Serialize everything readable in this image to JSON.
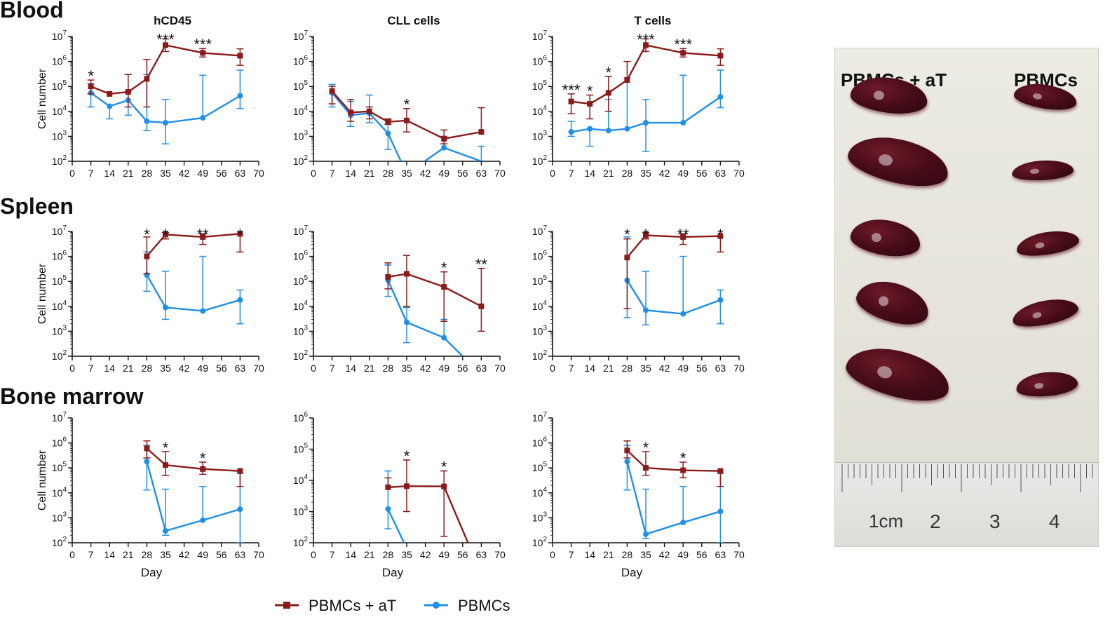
{
  "figure": {
    "row_titles": [
      "Blood",
      "Spleen",
      "Bone marrow"
    ],
    "col_titles": [
      "hCD45",
      "CLL cells",
      "T cells"
    ],
    "ylabel": "Cell number",
    "xlabel": "Day",
    "legend": [
      {
        "name": "PBMCs + aT",
        "color": "#8b1a1a",
        "marker": "square"
      },
      {
        "name": "PBMCs",
        "color": "#1f8fe8",
        "marker": "circle"
      }
    ]
  },
  "photo": {
    "labels": [
      "PBMCs + aT",
      "PBMCs"
    ],
    "ruler_labels": [
      "1cm",
      "2",
      "3",
      "4"
    ]
  },
  "chart_data": [
    {
      "type": "line",
      "row": "Blood",
      "title": "hCD45",
      "xlabel": "",
      "ylabel": "Cell number",
      "xlim": [
        0,
        70
      ],
      "ylim_log10": [
        2,
        7
      ],
      "xticks": [
        "0",
        "7",
        "14",
        "21",
        "28",
        "35",
        "42",
        "49",
        "56",
        "63",
        "70"
      ],
      "series": [
        {
          "name": "PBMCs + aT",
          "x": [
            7,
            14,
            21,
            28,
            35,
            49,
            63
          ],
          "y": [
            100000,
            50000,
            60000,
            200000,
            4500000,
            2200000,
            1700000
          ],
          "err_hi": [
            180000,
            null,
            300000,
            1200000,
            8000000,
            3300000,
            3200000
          ],
          "err_lo": [
            50000,
            null,
            15000,
            15000,
            2500000,
            1500000,
            700000
          ]
        },
        {
          "name": "PBMCs",
          "x": [
            7,
            14,
            21,
            28,
            35,
            49,
            63
          ],
          "y": [
            55000,
            16000,
            28000,
            4000,
            3500,
            5500,
            42000
          ],
          "err_hi": [
            130000,
            null,
            60000,
            300000,
            30000,
            280000,
            450000
          ],
          "err_lo": [
            15000,
            5000,
            7000,
            1700,
            500,
            null,
            13000
          ]
        }
      ],
      "annotations": [
        {
          "x": 7,
          "text": "*"
        },
        {
          "x": 35,
          "text": "***"
        },
        {
          "x": 49,
          "text": "***"
        }
      ]
    },
    {
      "type": "line",
      "row": "Blood",
      "title": "CLL cells",
      "xlabel": "",
      "ylabel": "",
      "xlim": [
        0,
        70
      ],
      "ylim_log10": [
        2,
        7
      ],
      "xticks": [
        "0",
        "7",
        "14",
        "21",
        "28",
        "35",
        "42",
        "49",
        "56",
        "63",
        "70"
      ],
      "series": [
        {
          "name": "PBMCs + aT",
          "x": [
            7,
            14,
            21,
            28,
            35,
            49,
            63
          ],
          "y": [
            65000,
            9000,
            10000,
            3800,
            4300,
            800,
            1500
          ],
          "err_hi": [
            100000,
            30000,
            15000,
            5000,
            13000,
            1800,
            14000
          ],
          "err_lo": [
            20000,
            4000,
            5000,
            3000,
            1500,
            500,
            null
          ]
        },
        {
          "name": "PBMCs",
          "x": [
            7,
            14,
            21,
            28,
            35,
            49,
            63
          ],
          "y": [
            55000,
            7000,
            8500,
            1300,
            0,
            350,
            100
          ],
          "err_hi": [
            120000,
            25000,
            45000,
            4500,
            null,
            1000,
            400
          ],
          "err_lo": [
            15000,
            2500,
            3500,
            300,
            null,
            null,
            null
          ]
        }
      ],
      "annotations": [
        {
          "x": 35,
          "text": "*"
        }
      ]
    },
    {
      "type": "line",
      "row": "Blood",
      "title": "T cells",
      "xlabel": "",
      "ylabel": "",
      "xlim": [
        0,
        70
      ],
      "ylim_log10": [
        2,
        7
      ],
      "xticks": [
        "0",
        "7",
        "14",
        "21",
        "28",
        "35",
        "42",
        "49",
        "56",
        "63",
        "70"
      ],
      "series": [
        {
          "name": "PBMCs + aT",
          "x": [
            7,
            14,
            21,
            28,
            35,
            49,
            63
          ],
          "y": [
            25000,
            20000,
            55000,
            180000,
            4500000,
            2200000,
            1700000
          ],
          "err_hi": [
            50000,
            45000,
            250000,
            1000000,
            8000000,
            3300000,
            3200000
          ],
          "err_lo": [
            8000,
            5000,
            10000,
            null,
            2500000,
            1500000,
            700000
          ]
        },
        {
          "name": "PBMCs",
          "x": [
            7,
            14,
            21,
            28,
            35,
            49,
            63
          ],
          "y": [
            1500,
            2000,
            1700,
            2000,
            3500,
            3500,
            38000
          ],
          "err_hi": [
            4000,
            null,
            30000,
            220000,
            30000,
            280000,
            450000
          ],
          "err_lo": [
            1000,
            400,
            null,
            null,
            250,
            null,
            14000
          ]
        }
      ],
      "annotations": [
        {
          "x": 7,
          "text": "***"
        },
        {
          "x": 14,
          "text": "*"
        },
        {
          "x": 21,
          "text": "*"
        },
        {
          "x": 35,
          "text": "***"
        },
        {
          "x": 49,
          "text": "***"
        }
      ]
    },
    {
      "type": "line",
      "row": "Spleen",
      "title": "",
      "xlabel": "",
      "ylabel": "Cell number",
      "xlim": [
        0,
        70
      ],
      "ylim_log10": [
        2,
        7
      ],
      "xticks": [
        "0",
        "7",
        "14",
        "21",
        "28",
        "35",
        "42",
        "49",
        "56",
        "63",
        "70"
      ],
      "series": [
        {
          "name": "PBMCs + aT",
          "x": [
            28,
            35,
            49,
            63
          ],
          "y": [
            1000000,
            7500000,
            6000000,
            8000000
          ],
          "err_hi": [
            6000000,
            9000000,
            8000000,
            null
          ],
          "err_lo": [
            200000,
            5000000,
            3000000,
            1500000
          ]
        },
        {
          "name": "PBMCs",
          "x": [
            28,
            35,
            49,
            63
          ],
          "y": [
            180000,
            9000,
            6500,
            18000
          ],
          "err_hi": [
            1500000,
            250000,
            1000000,
            45000
          ],
          "err_lo": [
            40000,
            3000,
            null,
            2000
          ]
        }
      ],
      "annotations": [
        {
          "x": 28,
          "text": "*"
        },
        {
          "x": 35,
          "text": "*"
        },
        {
          "x": 49,
          "text": "**"
        },
        {
          "x": 63,
          "text": "*"
        }
      ]
    },
    {
      "type": "line",
      "row": "Spleen",
      "title": "",
      "xlabel": "",
      "ylabel": "",
      "xlim": [
        0,
        70
      ],
      "ylim_log10": [
        2,
        7
      ],
      "xticks": [
        "0",
        "7",
        "14",
        "21",
        "28",
        "35",
        "42",
        "49",
        "56",
        "63",
        "70"
      ],
      "series": [
        {
          "name": "PBMCs + aT",
          "x": [
            28,
            35,
            49,
            63
          ],
          "y": [
            150000,
            200000,
            60000,
            10000
          ],
          "err_hi": [
            550000,
            1100000,
            240000,
            330000
          ],
          "err_lo": [
            50000,
            10000,
            2500,
            1000
          ]
        },
        {
          "name": "PBMCs",
          "x": [
            28,
            35,
            49,
            56
          ],
          "y": [
            110000,
            2300,
            550,
            100
          ],
          "err_hi": [
            450000,
            9000,
            3000,
            null
          ],
          "err_lo": [
            25000,
            350,
            null,
            null
          ]
        }
      ],
      "annotations": [
        {
          "x": 49,
          "text": "*"
        },
        {
          "x": 63,
          "text": "**"
        }
      ]
    },
    {
      "type": "line",
      "row": "Spleen",
      "title": "",
      "xlabel": "",
      "ylabel": "",
      "xlim": [
        0,
        70
      ],
      "ylim_log10": [
        2,
        7
      ],
      "xticks": [
        "0",
        "7",
        "14",
        "21",
        "28",
        "35",
        "42",
        "49",
        "56",
        "63",
        "70"
      ],
      "series": [
        {
          "name": "PBMCs + aT",
          "x": [
            28,
            35,
            49,
            63
          ],
          "y": [
            900000,
            7000000,
            6000000,
            6500000
          ],
          "err_hi": [
            5000000,
            9000000,
            8000000,
            null
          ],
          "err_lo": [
            8000,
            5000000,
            3000000,
            1500000
          ]
        },
        {
          "name": "PBMCs",
          "x": [
            28,
            35,
            49,
            63
          ],
          "y": [
            110000,
            7000,
            5000,
            18000
          ],
          "err_hi": [
            6000000,
            250000,
            1000000,
            45000
          ],
          "err_lo": [
            3500,
            1800,
            null,
            2000
          ]
        }
      ],
      "annotations": [
        {
          "x": 28,
          "text": "*"
        },
        {
          "x": 35,
          "text": "*"
        },
        {
          "x": 49,
          "text": "**"
        },
        {
          "x": 63,
          "text": "*"
        }
      ]
    },
    {
      "type": "line",
      "row": "Bone marrow",
      "title": "",
      "xlabel": "Day",
      "ylabel": "Cell number",
      "xlim": [
        0,
        70
      ],
      "ylim_log10": [
        2,
        7
      ],
      "xticks": [
        "0",
        "7",
        "14",
        "21",
        "28",
        "35",
        "42",
        "49",
        "56",
        "63",
        "70"
      ],
      "series": [
        {
          "name": "PBMCs + aT",
          "x": [
            28,
            35,
            49,
            63
          ],
          "y": [
            600000,
            130000,
            90000,
            75000
          ],
          "err_hi": [
            1200000,
            450000,
            170000,
            null
          ],
          "err_lo": [
            250000,
            50000,
            55000,
            18000
          ]
        },
        {
          "name": "PBMCs",
          "x": [
            28,
            35,
            49,
            63
          ],
          "y": [
            180000,
            300,
            800,
            2200
          ],
          "err_hi": [
            800000,
            14000,
            18000,
            60000
          ],
          "err_lo": [
            13000,
            200,
            null,
            100
          ]
        }
      ],
      "annotations": [
        {
          "x": 35,
          "text": "*"
        },
        {
          "x": 49,
          "text": "*"
        }
      ]
    },
    {
      "type": "line",
      "row": "Bone marrow",
      "title": "",
      "xlabel": "Day",
      "ylabel": "",
      "xlim": [
        0,
        70
      ],
      "ylim_log10": [
        2,
        6
      ],
      "xticks": [
        "0",
        "7",
        "14",
        "21",
        "28",
        "35",
        "42",
        "49",
        "56",
        "63",
        "70"
      ],
      "series": [
        {
          "name": "PBMCs + aT",
          "x": [
            28,
            35,
            49,
            58
          ],
          "y": [
            6000,
            6500,
            6400,
            100
          ],
          "err_hi": [
            12000,
            45000,
            20000,
            null
          ],
          "err_lo": [
            null,
            1000,
            160,
            null
          ]
        },
        {
          "name": "PBMCs",
          "x": [
            28,
            34
          ],
          "y": [
            1200,
            100
          ],
          "err_hi": [
            20000,
            null
          ],
          "err_lo": [
            280,
            null
          ]
        }
      ],
      "annotations": [
        {
          "x": 35,
          "text": "*"
        },
        {
          "x": 49,
          "text": "*"
        }
      ]
    },
    {
      "type": "line",
      "row": "Bone marrow",
      "title": "",
      "xlabel": "Day",
      "ylabel": "",
      "xlim": [
        0,
        70
      ],
      "ylim_log10": [
        2,
        7
      ],
      "xticks": [
        "0",
        "7",
        "14",
        "21",
        "28",
        "35",
        "42",
        "49",
        "56",
        "63",
        "70"
      ],
      "series": [
        {
          "name": "PBMCs + aT",
          "x": [
            28,
            35,
            49,
            63
          ],
          "y": [
            500000,
            100000,
            80000,
            75000
          ],
          "err_hi": [
            1200000,
            450000,
            170000,
            null
          ],
          "err_lo": [
            250000,
            50000,
            40000,
            18000
          ]
        },
        {
          "name": "PBMCs",
          "x": [
            28,
            35,
            49,
            63
          ],
          "y": [
            180000,
            220,
            650,
            1800
          ],
          "err_hi": [
            800000,
            14000,
            18000,
            60000
          ],
          "err_lo": [
            13000,
            150,
            null,
            100
          ]
        }
      ],
      "annotations": [
        {
          "x": 35,
          "text": "*"
        },
        {
          "x": 49,
          "text": "*"
        }
      ]
    }
  ]
}
